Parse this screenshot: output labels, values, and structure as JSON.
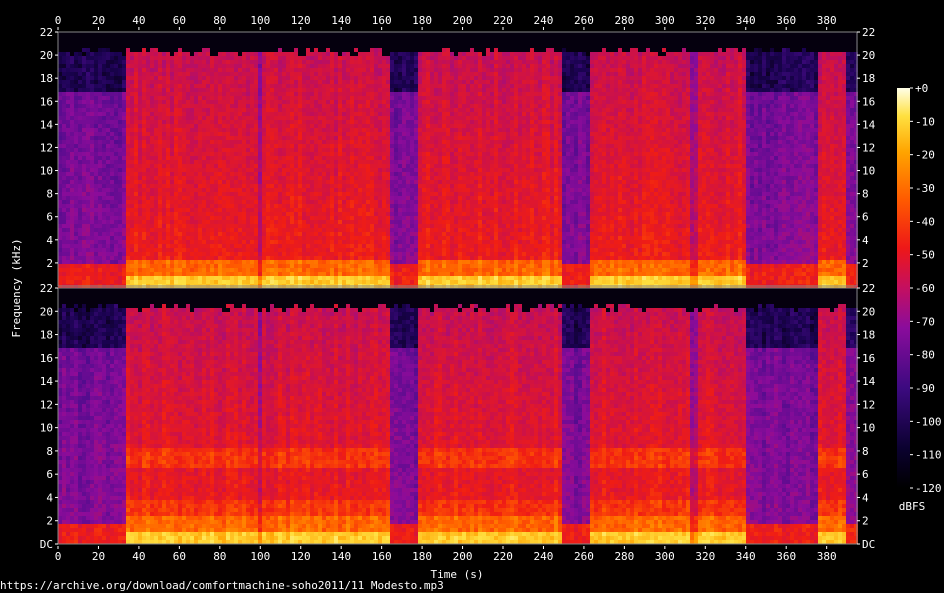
{
  "chart_data": {
    "type": "heatmap",
    "xlabel": "Time (s)",
    "ylabel": "Frequency (kHz)",
    "x_ticks": [
      "0",
      "20",
      "40",
      "60",
      "80",
      "100",
      "120",
      "140",
      "160",
      "180",
      "200",
      "220",
      "240",
      "260",
      "280",
      "300",
      "320",
      "340",
      "360",
      "380"
    ],
    "xlim": [
      0,
      395
    ],
    "channels": [
      {
        "y_ticks": [
          "22",
          "20",
          "18",
          "16",
          "14",
          "12",
          "10",
          "8",
          "6",
          "4",
          "2"
        ],
        "ylim": [
          0,
          22
        ],
        "bottom_label": ""
      },
      {
        "y_ticks": [
          "22",
          "20",
          "18",
          "16",
          "14",
          "12",
          "10",
          "8",
          "6",
          "4",
          "2",
          "DC"
        ],
        "ylim": [
          0,
          22
        ],
        "bottom_label": "DC"
      }
    ],
    "colorbar": {
      "label": "dBFS",
      "ticks": [
        "+0",
        "-10",
        "-20",
        "-30",
        "-40",
        "-50",
        "-60",
        "-70",
        "-80",
        "-90",
        "-100",
        "-110",
        "-120"
      ],
      "range": [
        -120,
        0
      ]
    },
    "colors": [
      "#000000",
      "#1a0250",
      "#4b0c8c",
      "#8c0c9a",
      "#c8104f",
      "#f01d14",
      "#ff5a00",
      "#ffa000",
      "#ffe040",
      "#ffffd0"
    ],
    "quiet_segments": [
      {
        "start": 0,
        "end": 33,
        "level": "low"
      },
      {
        "start": 98,
        "end": 100,
        "level": "dip"
      },
      {
        "start": 164,
        "end": 176,
        "level": "low"
      },
      {
        "start": 248,
        "end": 262,
        "level": "low"
      },
      {
        "start": 312,
        "end": 316,
        "level": "dip"
      },
      {
        "start": 340,
        "end": 375,
        "level": "low"
      },
      {
        "start": 388,
        "end": 395,
        "level": "low"
      }
    ]
  },
  "source_url": "https://archive.org/download/comfortmachine-soho2011/11 Modesto.mp3"
}
